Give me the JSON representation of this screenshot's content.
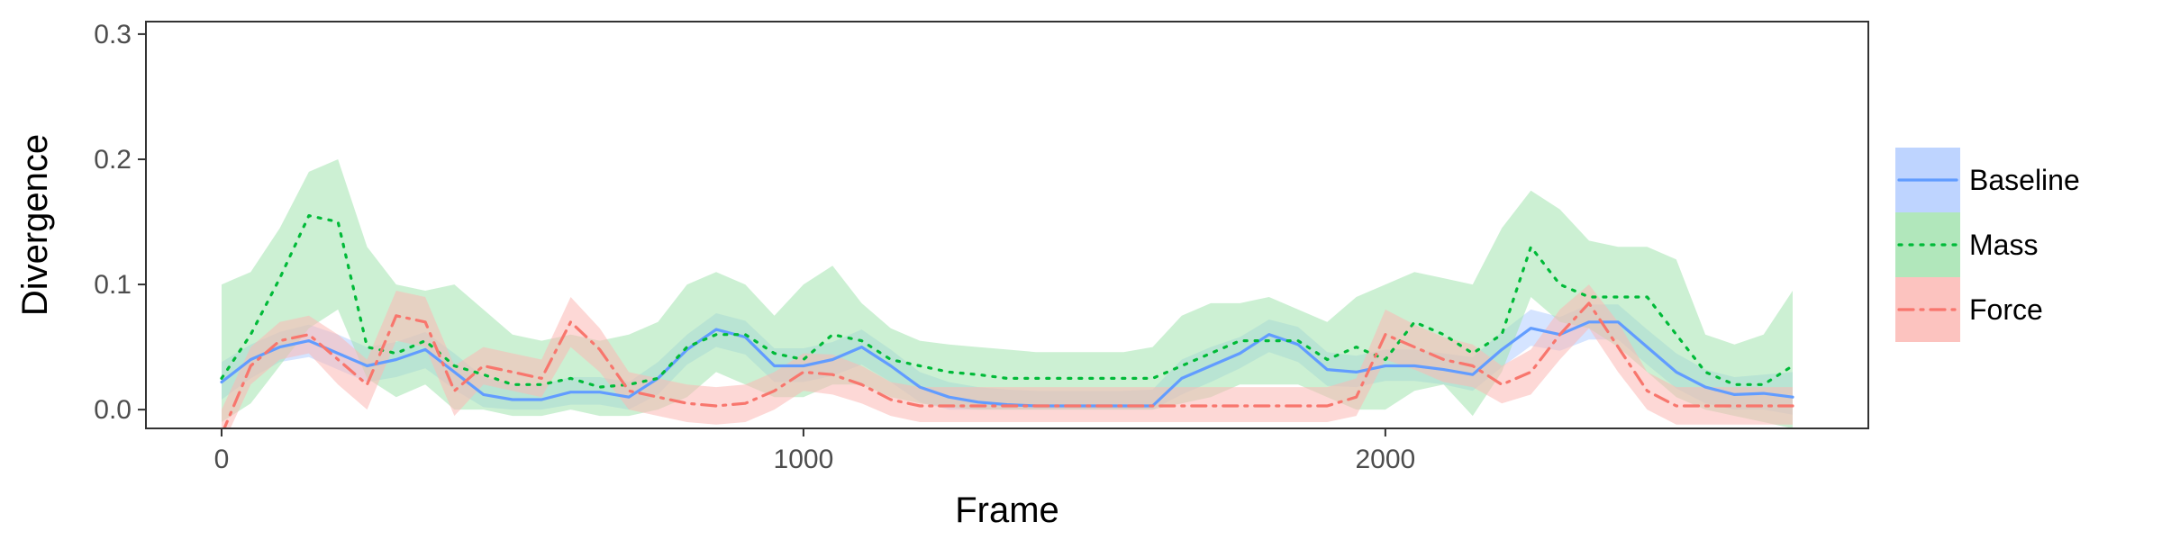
{
  "chart_data": {
    "type": "line",
    "title": "",
    "xlabel": "Frame",
    "ylabel": "Divergence",
    "xlim": [
      -130,
      2830
    ],
    "ylim": [
      -0.015,
      0.31
    ],
    "xticks": [
      0,
      1000,
      2000
    ],
    "xtick_labels": [
      "0",
      "1000",
      "2000"
    ],
    "yticks": [
      0.0,
      0.1,
      0.2,
      0.3
    ],
    "ytick_labels": [
      "0.0",
      "0.1",
      "0.2",
      "0.3"
    ],
    "grid": false,
    "legend_position": "right",
    "x": [
      0,
      50,
      100,
      150,
      200,
      250,
      300,
      350,
      400,
      450,
      500,
      550,
      600,
      650,
      700,
      750,
      800,
      850,
      900,
      950,
      1000,
      1050,
      1100,
      1150,
      1200,
      1250,
      1300,
      1350,
      1400,
      1450,
      1500,
      1550,
      1600,
      1650,
      1700,
      1750,
      1800,
      1850,
      1900,
      1950,
      2000,
      2050,
      2100,
      2150,
      2200,
      2250,
      2300,
      2350,
      2400,
      2450,
      2500,
      2550,
      2600,
      2650,
      2700
    ],
    "series": [
      {
        "name": "Baseline",
        "color": "#619CFF",
        "fill": "#B3CDFF",
        "dash": "solid",
        "y": [
          0.022,
          0.04,
          0.05,
          0.055,
          0.045,
          0.035,
          0.04,
          0.048,
          0.03,
          0.012,
          0.008,
          0.008,
          0.014,
          0.014,
          0.01,
          0.025,
          0.048,
          0.064,
          0.058,
          0.035,
          0.035,
          0.04,
          0.05,
          0.035,
          0.018,
          0.01,
          0.006,
          0.004,
          0.003,
          0.003,
          0.003,
          0.003,
          0.003,
          0.025,
          0.035,
          0.045,
          0.06,
          0.052,
          0.032,
          0.03,
          0.035,
          0.035,
          0.032,
          0.028,
          0.048,
          0.065,
          0.06,
          0.07,
          0.07,
          0.05,
          0.03,
          0.018,
          0.012,
          0.013,
          0.01
        ],
        "lower": [
          0.008,
          0.025,
          0.038,
          0.042,
          0.032,
          0.022,
          0.026,
          0.033,
          0.016,
          0.002,
          0.0,
          0.0,
          0.004,
          0.004,
          0.0,
          0.012,
          0.036,
          0.05,
          0.044,
          0.022,
          0.022,
          0.027,
          0.036,
          0.022,
          0.006,
          0.0,
          0.0,
          0.0,
          0.0,
          0.0,
          0.0,
          0.0,
          0.0,
          0.012,
          0.022,
          0.033,
          0.046,
          0.038,
          0.019,
          0.018,
          0.023,
          0.023,
          0.02,
          0.015,
          0.034,
          0.051,
          0.047,
          0.056,
          0.056,
          0.036,
          0.017,
          0.005,
          0.0,
          0.0,
          -0.004
        ],
        "upper": [
          0.038,
          0.052,
          0.062,
          0.068,
          0.06,
          0.05,
          0.054,
          0.062,
          0.045,
          0.026,
          0.02,
          0.02,
          0.026,
          0.026,
          0.022,
          0.038,
          0.06,
          0.077,
          0.071,
          0.049,
          0.049,
          0.054,
          0.064,
          0.048,
          0.03,
          0.022,
          0.018,
          0.016,
          0.015,
          0.015,
          0.015,
          0.015,
          0.016,
          0.04,
          0.05,
          0.058,
          0.072,
          0.066,
          0.046,
          0.043,
          0.048,
          0.048,
          0.045,
          0.042,
          0.062,
          0.08,
          0.074,
          0.084,
          0.084,
          0.064,
          0.045,
          0.032,
          0.026,
          0.028,
          0.03
        ]
      },
      {
        "name": "Mass",
        "color": "#00BA38",
        "fill": "#A3E3AF",
        "dash": "dotted",
        "y": [
          0.025,
          0.06,
          0.105,
          0.155,
          0.15,
          0.05,
          0.045,
          0.055,
          0.035,
          0.028,
          0.02,
          0.02,
          0.025,
          0.018,
          0.02,
          0.025,
          0.05,
          0.06,
          0.06,
          0.045,
          0.04,
          0.06,
          0.055,
          0.04,
          0.035,
          0.03,
          0.028,
          0.025,
          0.025,
          0.025,
          0.025,
          0.025,
          0.025,
          0.035,
          0.045,
          0.055,
          0.055,
          0.055,
          0.04,
          0.05,
          0.04,
          0.07,
          0.06,
          0.045,
          0.06,
          0.13,
          0.1,
          0.09,
          0.09,
          0.09,
          0.06,
          0.03,
          0.02,
          0.02,
          0.035
        ],
        "lower": [
          -0.01,
          0.005,
          0.035,
          0.065,
          0.08,
          0.025,
          0.01,
          0.02,
          0.0,
          0.0,
          -0.005,
          -0.005,
          0.0,
          -0.005,
          -0.005,
          0.0,
          0.01,
          0.03,
          0.02,
          0.01,
          0.01,
          0.02,
          0.02,
          0.01,
          0.005,
          0.002,
          0.0,
          0.0,
          0.0,
          0.0,
          0.0,
          0.0,
          0.0,
          0.005,
          0.01,
          0.02,
          0.02,
          0.02,
          0.01,
          0.0,
          0.0,
          0.015,
          0.02,
          -0.005,
          0.03,
          0.09,
          0.07,
          0.065,
          0.05,
          0.03,
          0.01,
          0.0,
          -0.005,
          -0.01,
          -0.015
        ],
        "upper": [
          0.1,
          0.11,
          0.145,
          0.19,
          0.2,
          0.13,
          0.1,
          0.095,
          0.1,
          0.08,
          0.06,
          0.055,
          0.06,
          0.055,
          0.06,
          0.07,
          0.1,
          0.11,
          0.1,
          0.075,
          0.1,
          0.115,
          0.085,
          0.065,
          0.055,
          0.052,
          0.05,
          0.048,
          0.046,
          0.046,
          0.046,
          0.046,
          0.05,
          0.075,
          0.085,
          0.085,
          0.09,
          0.08,
          0.07,
          0.09,
          0.1,
          0.11,
          0.105,
          0.1,
          0.145,
          0.175,
          0.16,
          0.135,
          0.13,
          0.13,
          0.12,
          0.06,
          0.052,
          0.06,
          0.095
        ]
      },
      {
        "name": "Force",
        "color": "#F8766D",
        "fill": "#FBB8B4",
        "dash": "dashdot",
        "y": [
          -0.02,
          0.035,
          0.055,
          0.06,
          0.04,
          0.02,
          0.075,
          0.07,
          0.015,
          0.035,
          0.03,
          0.025,
          0.07,
          0.048,
          0.015,
          0.01,
          0.005,
          0.003,
          0.005,
          0.015,
          0.03,
          0.028,
          0.02,
          0.008,
          0.003,
          0.003,
          0.003,
          0.003,
          0.003,
          0.003,
          0.003,
          0.003,
          0.003,
          0.003,
          0.003,
          0.003,
          0.003,
          0.003,
          0.003,
          0.01,
          0.06,
          0.05,
          0.04,
          0.035,
          0.02,
          0.03,
          0.06,
          0.085,
          0.05,
          0.015,
          0.003,
          0.003,
          0.003,
          0.003,
          0.003
        ],
        "lower": [
          -0.03,
          0.02,
          0.04,
          0.045,
          0.02,
          0.0,
          0.055,
          0.05,
          -0.005,
          0.02,
          0.015,
          0.01,
          0.05,
          0.03,
          0.0,
          -0.005,
          -0.01,
          -0.012,
          -0.01,
          0.0,
          0.015,
          0.012,
          0.005,
          -0.005,
          -0.01,
          -0.01,
          -0.01,
          -0.01,
          -0.01,
          -0.01,
          -0.01,
          -0.01,
          -0.01,
          -0.01,
          -0.01,
          -0.01,
          -0.01,
          -0.01,
          -0.01,
          -0.005,
          0.04,
          0.032,
          0.022,
          0.018,
          0.005,
          0.012,
          0.04,
          0.065,
          0.03,
          0.0,
          -0.012,
          -0.012,
          -0.012,
          -0.012,
          -0.012
        ],
        "upper": [
          0.0,
          0.05,
          0.07,
          0.075,
          0.06,
          0.04,
          0.095,
          0.09,
          0.035,
          0.05,
          0.045,
          0.04,
          0.09,
          0.065,
          0.03,
          0.025,
          0.02,
          0.018,
          0.02,
          0.03,
          0.045,
          0.044,
          0.035,
          0.022,
          0.018,
          0.018,
          0.018,
          0.018,
          0.018,
          0.018,
          0.018,
          0.018,
          0.018,
          0.018,
          0.018,
          0.018,
          0.018,
          0.018,
          0.018,
          0.025,
          0.08,
          0.068,
          0.058,
          0.052,
          0.035,
          0.048,
          0.08,
          0.1,
          0.07,
          0.03,
          0.018,
          0.018,
          0.018,
          0.018,
          0.018
        ]
      }
    ]
  }
}
